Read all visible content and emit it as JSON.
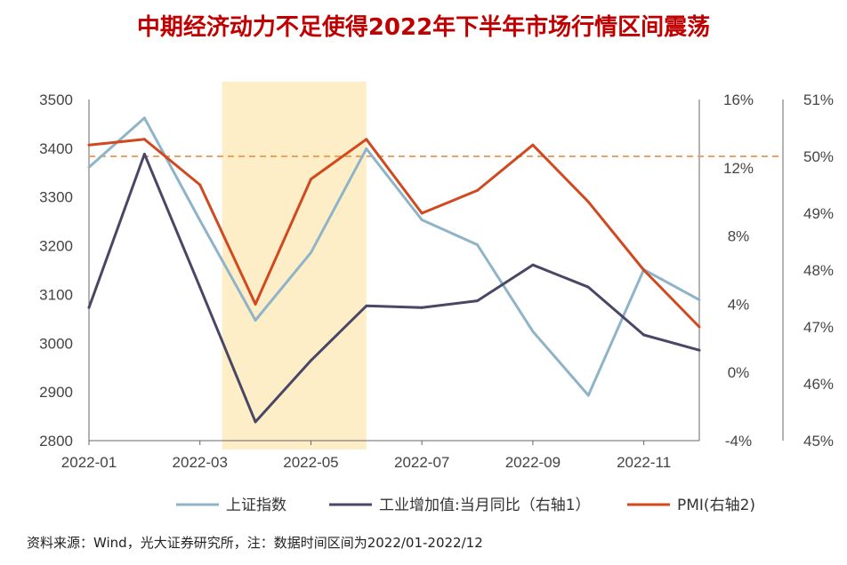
{
  "title": "中期经济动力不足使得2022年下半年市场行情区间震荡",
  "source": "资料来源：Wind，光大证券研究所，注：数据时间区间为2022/01-2022/12",
  "colors": {
    "index": "#8fb4c8",
    "industrial": "#4a4766",
    "pmi": "#d0491f",
    "highlight": "#fdeec8",
    "refline": "#f0a060",
    "axis": "#666666",
    "title": "#c00000"
  },
  "chart_data": {
    "type": "line",
    "title": "中期经济动力不足使得2022年下半年市场行情区间震荡",
    "x": [
      "2022-01",
      "2022-02",
      "2022-03",
      "2022-04",
      "2022-05",
      "2022-06",
      "2022-07",
      "2022-08",
      "2022-09",
      "2022-10",
      "2022-11",
      "2022-12"
    ],
    "x_tick_labels": [
      "2022-01",
      "2022-03",
      "2022-05",
      "2022-07",
      "2022-09",
      "2022-11"
    ],
    "x_tick_indices": [
      0,
      2,
      4,
      6,
      8,
      10
    ],
    "y_left": {
      "ticks": [
        2800,
        2900,
        3000,
        3100,
        3200,
        3300,
        3400,
        3500
      ],
      "ylim": [
        2800,
        3500
      ]
    },
    "y_right1": {
      "ticks": [
        "-4%",
        "0%",
        "4%",
        "8%",
        "12%",
        "16%"
      ],
      "values": [
        -4,
        0,
        4,
        8,
        12,
        16
      ],
      "ylim": [
        -4,
        16
      ]
    },
    "y_right2": {
      "ticks": [
        "45%",
        "46%",
        "47%",
        "48%",
        "49%",
        "50%",
        "51%"
      ],
      "values": [
        45,
        46,
        47,
        48,
        49,
        50,
        51
      ],
      "ylim": [
        45,
        51
      ]
    },
    "reference_line": {
      "axis": "right2",
      "value": 50
    },
    "highlight_range": {
      "from_index": 2.4,
      "to_index": 5.0
    },
    "series": [
      {
        "name": "上证指数",
        "axis": "left",
        "values": [
          3361,
          3462,
          3252,
          3047,
          3186,
          3399,
          3253,
          3202,
          3024,
          2893,
          3151,
          3089
        ]
      },
      {
        "name": "工业增加值:当月同比（右轴1）",
        "axis": "right1",
        "values": [
          3.8,
          12.8,
          5.0,
          -2.9,
          0.7,
          3.9,
          3.8,
          4.2,
          6.3,
          5.0,
          2.2,
          1.3
        ]
      },
      {
        "name": "PMI(右轴2)",
        "axis": "right2",
        "values": [
          50.2,
          50.3,
          49.5,
          47.4,
          49.6,
          50.3,
          49.0,
          49.4,
          50.2,
          49.2,
          48.0,
          47.0
        ]
      }
    ],
    "legend_position": "bottom"
  }
}
